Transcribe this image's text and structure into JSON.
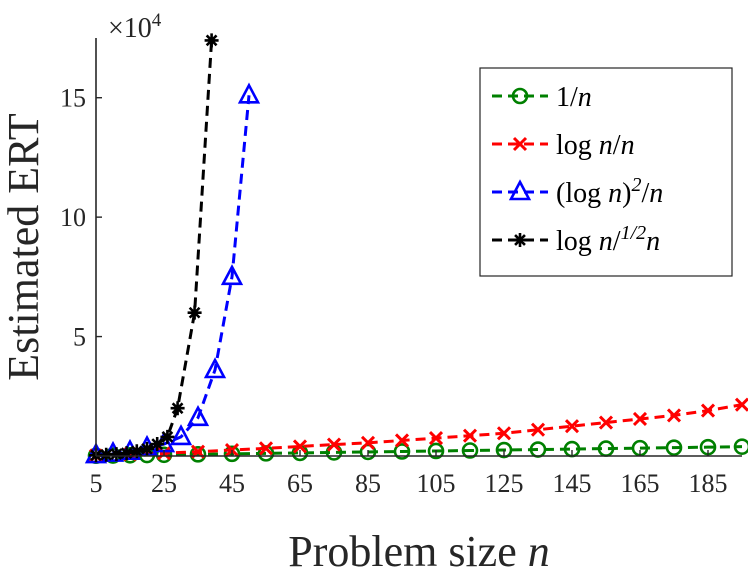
{
  "chart_data": {
    "type": "line",
    "xlabel": "Problem size",
    "xlabel_var": "n",
    "ylabel": "Estimated ERT",
    "y_multiplier": "×10",
    "y_multiplier_exp": "4",
    "xlim": [
      5,
      195
    ],
    "ylim": [
      0,
      17.5
    ],
    "x_ticks": [
      5,
      25,
      45,
      65,
      85,
      105,
      125,
      145,
      165,
      185
    ],
    "y_ticks": [
      5,
      10,
      15
    ],
    "grid": false,
    "legend_position": "top-right",
    "series": [
      {
        "name": "1/n",
        "legend": {
          "pre": "1/",
          "var": "n",
          "post": "",
          "sup": "",
          "tail": ""
        },
        "color": "#008000",
        "marker": "circle",
        "x": [
          5,
          10,
          15,
          20,
          25,
          35,
          45,
          55,
          65,
          75,
          85,
          95,
          105,
          115,
          125,
          135,
          145,
          155,
          165,
          175,
          185,
          195
        ],
        "y": [
          0.01,
          0.02,
          0.03,
          0.04,
          0.05,
          0.07,
          0.09,
          0.11,
          0.13,
          0.15,
          0.17,
          0.19,
          0.21,
          0.23,
          0.25,
          0.27,
          0.29,
          0.31,
          0.33,
          0.35,
          0.37,
          0.39
        ]
      },
      {
        "name": "log n/n",
        "legend": {
          "pre": "log ",
          "var": "n",
          "post": "/",
          "sup": "",
          "tail": "n"
        },
        "color": "#ff0000",
        "marker": "x",
        "x": [
          5,
          15,
          25,
          35,
          45,
          55,
          65,
          75,
          85,
          95,
          105,
          115,
          125,
          135,
          145,
          155,
          165,
          175,
          185,
          195
        ],
        "y": [
          0.02,
          0.07,
          0.12,
          0.18,
          0.25,
          0.32,
          0.4,
          0.48,
          0.55,
          0.65,
          0.75,
          0.85,
          0.95,
          1.1,
          1.25,
          1.4,
          1.55,
          1.7,
          1.9,
          2.15
        ]
      },
      {
        "name": "(log n)^2/n",
        "legend": {
          "pre": "(log ",
          "var": "n",
          "post": ")",
          "sup": "2",
          "tail": "/n"
        },
        "color": "#0000ff",
        "marker": "triangle",
        "x": [
          5,
          10,
          15,
          20,
          25,
          30,
          35,
          40,
          45,
          50
        ],
        "y": [
          0.04,
          0.1,
          0.18,
          0.35,
          0.5,
          0.8,
          1.6,
          3.6,
          7.5,
          15.1
        ]
      },
      {
        "name": "log n/n^1/2",
        "legend": {
          "pre": "log ",
          "var": "n",
          "post": "/",
          "sup": "1/2",
          "tail": "n"
        },
        "color": "#000000",
        "marker": "star",
        "x": [
          5,
          8,
          11,
          14,
          17,
          20,
          23,
          26,
          29,
          34,
          39
        ],
        "y": [
          0.03,
          0.05,
          0.08,
          0.12,
          0.2,
          0.3,
          0.5,
          0.8,
          2.0,
          6.0,
          17.4
        ]
      }
    ]
  }
}
